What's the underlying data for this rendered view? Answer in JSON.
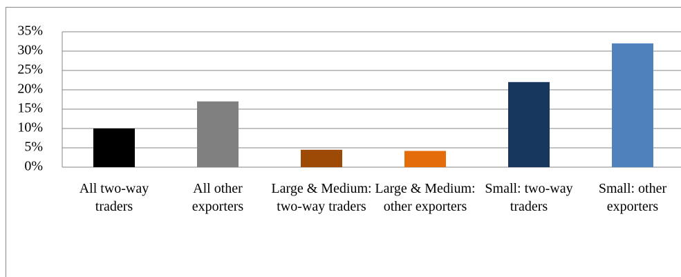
{
  "chart_data": {
    "type": "bar",
    "categories": [
      "All two-way traders",
      "All other exporters",
      "Large & Medium: two-way traders",
      "Large & Medium: other exporters",
      "Small: two-way traders",
      "Small: other exporters"
    ],
    "values": [
      10,
      17,
      4.5,
      4.2,
      22,
      32
    ],
    "colors": [
      "#000000",
      "#808080",
      "#9c4a06",
      "#e46c0a",
      "#17375e",
      "#4f81bd"
    ],
    "ylim": [
      0,
      35
    ],
    "yticks": [
      {
        "value": 0,
        "label": "0%"
      },
      {
        "value": 5,
        "label": "5%"
      },
      {
        "value": 10,
        "label": "10%"
      },
      {
        "value": 15,
        "label": "15%"
      },
      {
        "value": 20,
        "label": "20%"
      },
      {
        "value": 25,
        "label": "25%"
      },
      {
        "value": 30,
        "label": "30%"
      },
      {
        "value": 35,
        "label": "35%"
      }
    ],
    "grid": true
  }
}
